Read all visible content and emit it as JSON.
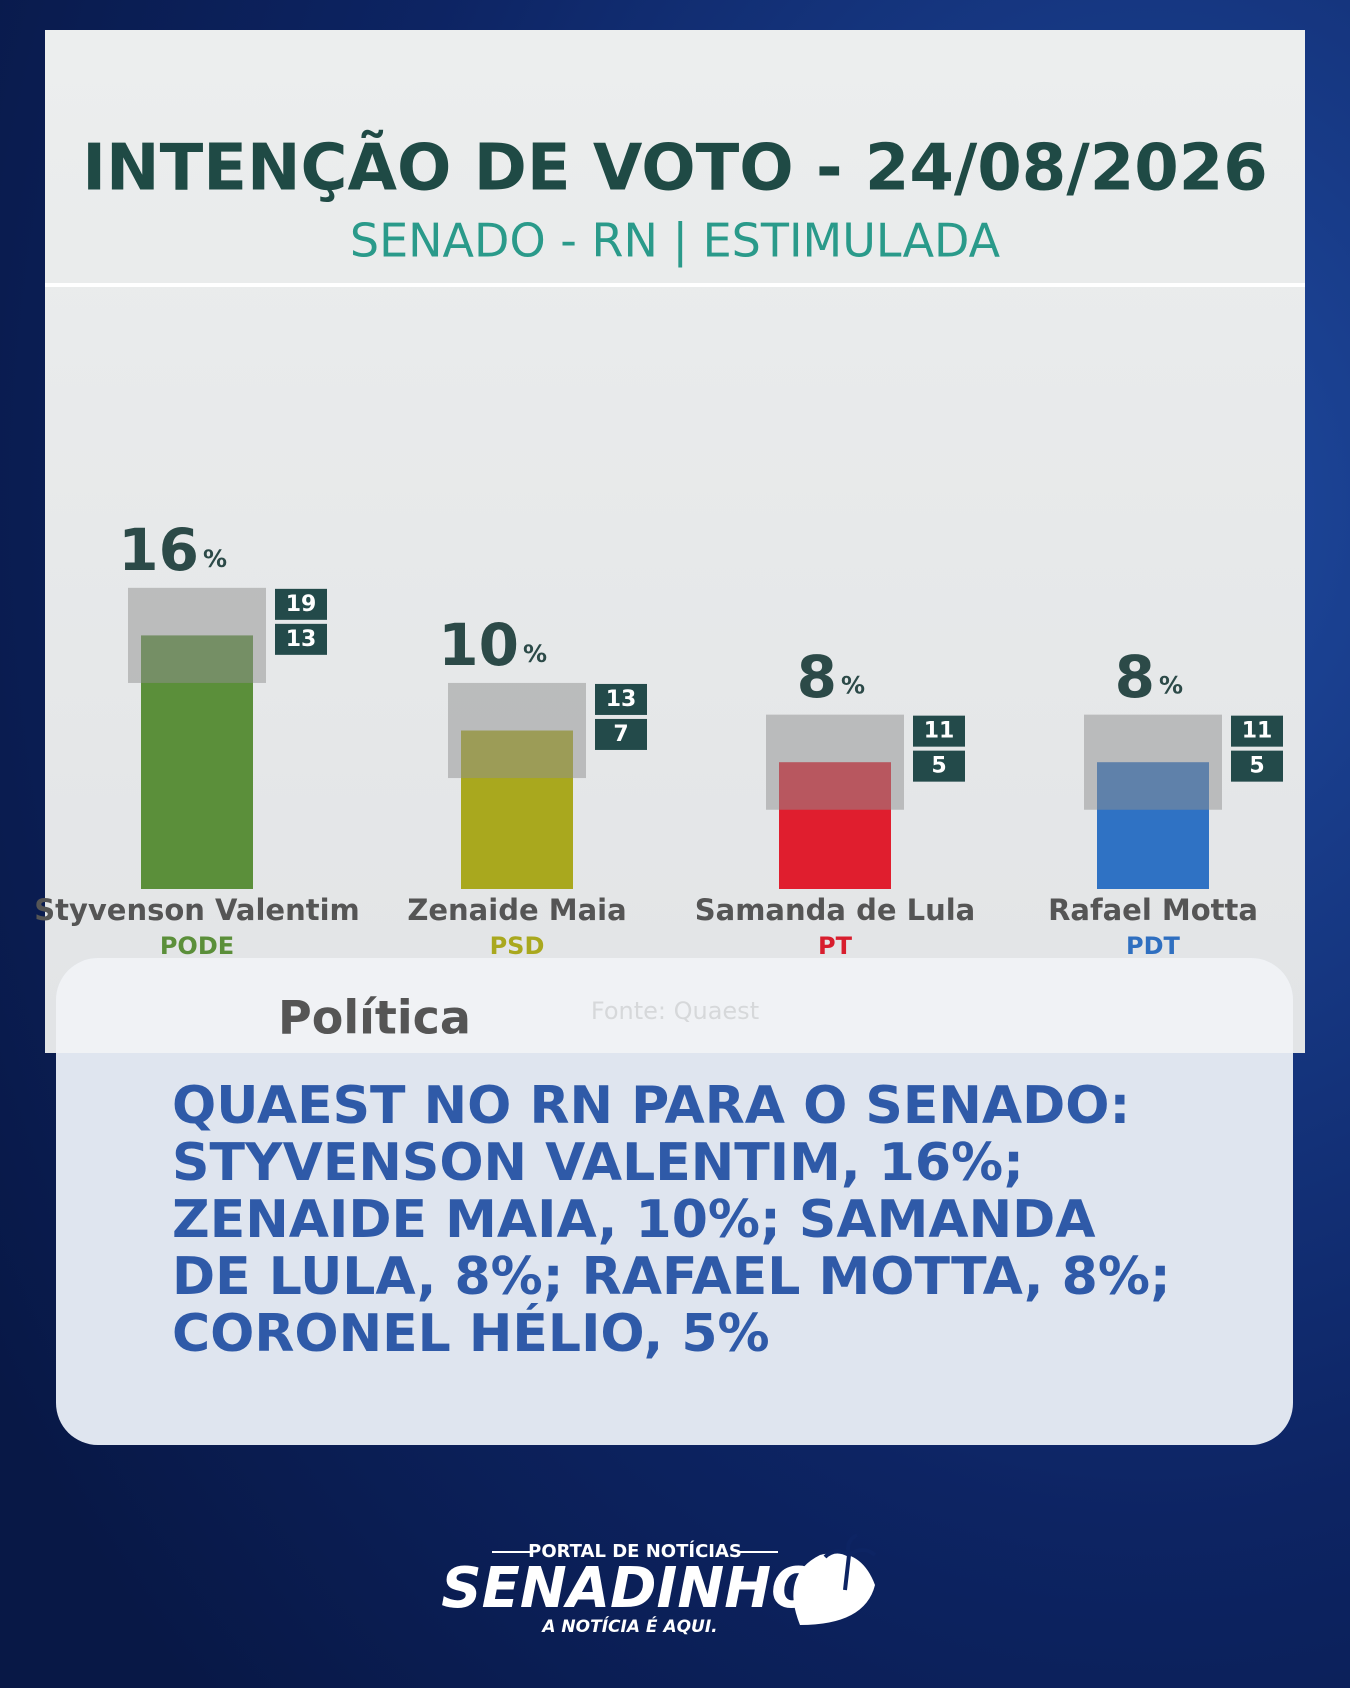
{
  "chart_data": {
    "type": "bar",
    "title": "INTENÇÃO DE VOTO - 24/08/2026",
    "subtitle": "SENADO - RN | ESTIMULADA",
    "categories": [
      "Styvenson Valentim",
      "Zenaide Maia",
      "Samanda de Lula",
      "Rafael Motta"
    ],
    "parties": [
      "PODE",
      "PSD",
      "PT",
      "PDT"
    ],
    "values": [
      16,
      10,
      8,
      8
    ],
    "upper": [
      19,
      13,
      11,
      11
    ],
    "lower": [
      13,
      7,
      5,
      5
    ],
    "unit": "%",
    "colors": [
      "#5b8f3a",
      "#a9a81e",
      "#e01e2e",
      "#2f72c4"
    ],
    "party_colors": [
      "#5b8f3a",
      "#a9a81e",
      "#d81e2e",
      "#2f6fc0"
    ],
    "source": "Fonte: Quaest"
  },
  "post": {
    "category": "Política",
    "headline_lines": [
      "QUAEST NO RN PARA O SENADO:",
      "STYVENSON VALENTIM, 16%;",
      "ZENAIDE MAIA, 10%; SAMANDA",
      "DE LULA, 8%; RAFAEL MOTTA, 8%;",
      "CORONEL HÉLIO, 5%"
    ]
  },
  "brand": {
    "tagline_top": "PORTAL DE NOTÍCIAS",
    "name": "SENADINHO",
    "tagline_bottom": "A NOTÍCIA É AQUI."
  }
}
